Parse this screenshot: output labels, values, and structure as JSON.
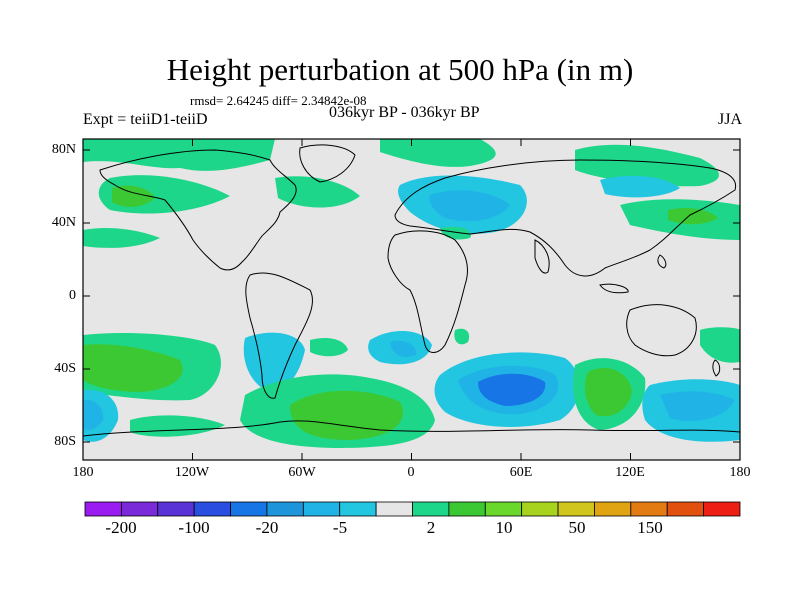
{
  "title": "Height perturbation at 500 hPa (in m)",
  "stats": "rmsd= 2.64245 diff= 2.34842e-08",
  "experiment": "Expt = teiiD1-teiiD",
  "period": "036kyr BP - 036kyr BP",
  "season": "JJA",
  "x_ticks": [
    "180",
    "120W",
    "60W",
    "0",
    "60E",
    "120E",
    "180"
  ],
  "y_ticks": [
    "80N",
    "40N",
    "0",
    "40S",
    "80S"
  ],
  "colorbar": {
    "colors": [
      "#9a1cf0",
      "#7a2ad8",
      "#5a33d6",
      "#2a4ee0",
      "#1775e6",
      "#1e95da",
      "#20b4e6",
      "#22c6e0",
      "#e6e6e6",
      "#1ed68a",
      "#3cc832",
      "#6ad72b",
      "#a7d21e",
      "#d0c51c",
      "#e0a413",
      "#e27c12",
      "#e25010",
      "#ed1e14"
    ],
    "labels": [
      "-200",
      "-100",
      "-20",
      "-5",
      "2",
      "10",
      "50",
      "150"
    ]
  }
}
